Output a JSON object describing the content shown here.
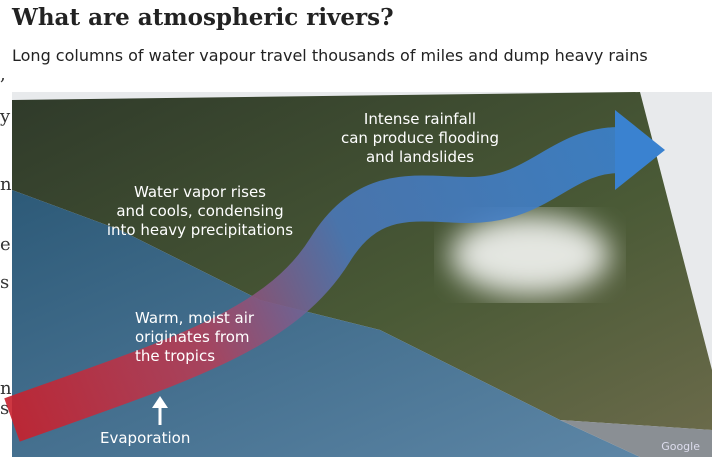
{
  "header": {
    "title": "What are atmospheric rivers?",
    "subtitle": "Long columns of water vapour travel thousands of miles and dump heavy rains"
  },
  "labels": [
    {
      "lines": [
        "Intense rainfall",
        "can produce flooding",
        "and landslides"
      ]
    },
    {
      "lines": [
        "Water vapor rises",
        "and cools, condensing",
        "into heavy precipitations"
      ]
    },
    {
      "lines": [
        "Warm, moist air",
        "originates from",
        "the tropics"
      ]
    },
    {
      "lines": [
        "Evaporation"
      ]
    }
  ],
  "watermark": "Google",
  "clipped_text": [
    ",",
    "y",
    "n",
    "e",
    "s",
    "n",
    "s"
  ]
}
